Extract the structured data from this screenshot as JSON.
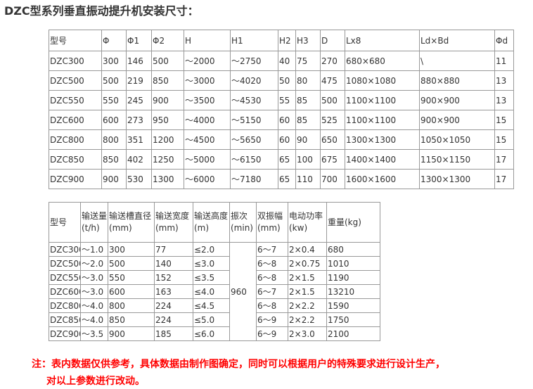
{
  "title": "DZC型系列垂直振动提升机安装尺寸：",
  "table1": {
    "headers": [
      "型号",
      "Φ",
      "Φ1",
      "Φ2",
      "H",
      "H1",
      "H2",
      "H3",
      "D",
      "Lx8",
      "Ld×Bd",
      "Φd"
    ],
    "rows": [
      [
        "DZC300",
        "300",
        "146",
        "500",
        "～2000",
        "～2750",
        "40",
        "75",
        "270",
        "680×680",
        "\\",
        "11"
      ],
      [
        "DZC500",
        "500",
        "219",
        "850",
        "～3000",
        "～4020",
        "50",
        "80",
        "475",
        "1080×1080",
        "880×880",
        "13"
      ],
      [
        "DZC550",
        "550",
        "245",
        "900",
        "～3500",
        "～4530",
        "55",
        "85",
        "500",
        "1100×1100",
        "900×900",
        "13"
      ],
      [
        "DZC600",
        "600",
        "273",
        "950",
        "～4000",
        "～5150",
        "60",
        "85",
        "525",
        "1100×1100",
        "900×900",
        "15"
      ],
      [
        "DZC800",
        "800",
        "351",
        "1200",
        "～4500",
        "～5650",
        "60",
        "90",
        "650",
        "1300×1300",
        "1050×1050",
        "15"
      ],
      [
        "DZC850",
        "850",
        "402",
        "1250",
        "～5000",
        "～6150",
        "65",
        "100",
        "675",
        "1400×1400",
        "1150×1150",
        "17"
      ],
      [
        "DZC900",
        "900",
        "530",
        "1300",
        "～6000",
        "～7180",
        "65",
        "110",
        "700",
        "1600×1600",
        "1300×1300",
        "17"
      ]
    ]
  },
  "table2": {
    "headers": [
      "型号",
      "输送量(t/h)",
      "输送槽直径(mm)",
      "输送宽度(mm)",
      "输送高度(m)",
      "振次(min)",
      "双振幅(mm)",
      "电动功率(kw)",
      "重量(kg)"
    ],
    "frequency": "960",
    "rows": [
      [
        "DZC300",
        "～1.0",
        "300",
        "77",
        "≤2.0",
        "6～7",
        "2×0.4",
        "680"
      ],
      [
        "DZC500",
        "～2.0",
        "500",
        "140",
        "≤3.0",
        "6～8",
        "2×0.75",
        "1010"
      ],
      [
        "DZC550",
        "～3.0",
        "550",
        "152",
        "≤3.5",
        "6～8",
        "2×1.5",
        "1190"
      ],
      [
        "DZC600",
        "～3.0",
        "600",
        "163",
        "≤4.0",
        "6～7",
        "2×1.5",
        "13210"
      ],
      [
        "DZC800",
        "～4.0",
        "800",
        "224",
        "≤4.5",
        "6～8",
        "2×2.2",
        "1590"
      ],
      [
        "DZC850",
        "～4.0",
        "850",
        "224",
        "≤5.0",
        "6～9",
        "2×2.2",
        "1750"
      ],
      [
        "DZC900",
        "～3.5",
        "900",
        "185",
        "≤6.0",
        "6～9",
        "2×3.0",
        "2100"
      ]
    ]
  },
  "note": {
    "line1": "注：表内数据仅供参考，具体数据由制作图确定，同时可以根据用户的特殊要求进行设计生产，",
    "line2": "对以上参数进行改动。",
    "color": "#ff0000"
  }
}
